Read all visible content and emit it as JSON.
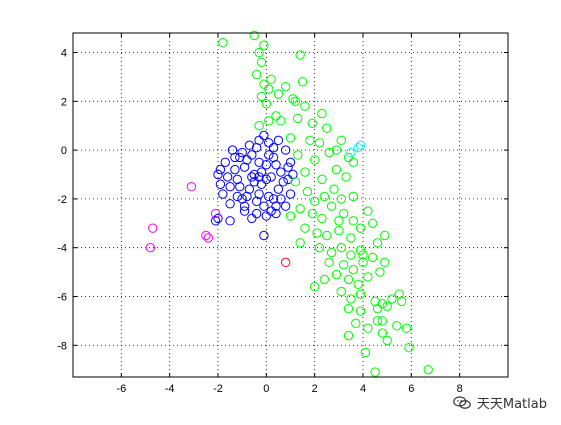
{
  "chart_data": {
    "type": "scatter",
    "title": "",
    "xlabel": "",
    "ylabel": "",
    "xlim": [
      -8,
      10
    ],
    "ylim": [
      -9.3,
      4.8
    ],
    "xticks": [
      -6,
      -4,
      -2,
      0,
      2,
      4,
      6,
      8
    ],
    "yticks": [
      -8,
      -6,
      -4,
      -2,
      0,
      2,
      4
    ],
    "xtick_labels": [
      "-6",
      "-4",
      "-2",
      "0",
      "2",
      "4",
      "6",
      "8"
    ],
    "ytick_labels": [
      "-8",
      "-6",
      "-4",
      "-2",
      "0",
      "2",
      "4"
    ],
    "grid": true,
    "grid_style": "dotted",
    "marker": "open-circle",
    "legend": "none",
    "series": [
      {
        "color": "#0000ff",
        "points": [
          [
            -2.1,
            -2.9
          ],
          [
            -2.0,
            -2.8
          ],
          [
            -1.5,
            -2.9
          ],
          [
            -0.6,
            -2.8
          ],
          [
            -0.1,
            -3.5
          ],
          [
            -1.9,
            -1.4
          ],
          [
            -2.0,
            -1.0
          ],
          [
            -1.9,
            -0.8
          ],
          [
            -1.3,
            -0.3
          ],
          [
            -1.0,
            -0.1
          ],
          [
            -0.7,
            0.2
          ],
          [
            -0.3,
            0.4
          ],
          [
            -0.1,
            0.6
          ],
          [
            0.1,
            0.3
          ],
          [
            0.5,
            0.4
          ],
          [
            0.8,
            0.0
          ],
          [
            1.0,
            -0.5
          ],
          [
            0.9,
            -1.2
          ],
          [
            1.0,
            -1.8
          ],
          [
            0.8,
            -2.3
          ],
          [
            0.4,
            -2.6
          ],
          [
            0.0,
            -2.7
          ],
          [
            -0.4,
            -2.6
          ],
          [
            -0.9,
            -2.5
          ],
          [
            -1.5,
            -2.2
          ],
          [
            -1.8,
            -1.8
          ],
          [
            -1.7,
            -0.5
          ],
          [
            -1.4,
            0.0
          ],
          [
            0.4,
            -2.3
          ],
          [
            1.1,
            -1.0
          ],
          [
            -1.2,
            -1.2
          ],
          [
            -0.9,
            -0.7
          ],
          [
            -0.5,
            -1.0
          ],
          [
            -0.2,
            -1.4
          ],
          [
            0.2,
            -1.1
          ],
          [
            0.4,
            -0.6
          ],
          [
            0.1,
            -0.2
          ],
          [
            -0.3,
            -0.5
          ],
          [
            -0.7,
            -1.6
          ],
          [
            -1.0,
            -2.0
          ],
          [
            -0.4,
            -2.1
          ],
          [
            0.1,
            -1.9
          ],
          [
            0.5,
            -1.6
          ],
          [
            0.6,
            -0.9
          ],
          [
            -0.2,
            -0.9
          ],
          [
            -0.6,
            -0.2
          ],
          [
            -1.3,
            -0.8
          ],
          [
            -1.5,
            -1.5
          ],
          [
            -0.8,
            -1.9
          ],
          [
            -0.1,
            -2.3
          ],
          [
            0.3,
            -2.0
          ],
          [
            0.7,
            -1.3
          ],
          [
            0.3,
            -0.3
          ],
          [
            -0.5,
            -1.3
          ],
          [
            -1.1,
            -1.5
          ],
          [
            -0.3,
            -1.8
          ],
          [
            0.0,
            -0.6
          ],
          [
            -0.8,
            -0.4
          ],
          [
            -1.1,
            -0.3
          ],
          [
            0.6,
            -2.0
          ],
          [
            -1.6,
            -1.1
          ],
          [
            -0.9,
            -2.3
          ],
          [
            0.2,
            -2.5
          ],
          [
            0.9,
            -0.7
          ],
          [
            0.3,
            0.1
          ],
          [
            -0.4,
            0.1
          ],
          [
            -1.2,
            -1.9
          ],
          [
            -0.6,
            -1.1
          ],
          [
            0.0,
            -1.2
          ],
          [
            -0.3,
            -1.1
          ]
        ]
      },
      {
        "color": "#00ff00",
        "points": [
          [
            -1.8,
            4.4
          ],
          [
            -0.5,
            4.7
          ],
          [
            -0.1,
            4.3
          ],
          [
            -0.3,
            4.0
          ],
          [
            -0.2,
            3.6
          ],
          [
            1.4,
            3.9
          ],
          [
            -0.4,
            3.1
          ],
          [
            -0.1,
            2.7
          ],
          [
            0.2,
            2.9
          ],
          [
            0.1,
            2.5
          ],
          [
            -0.2,
            2.2
          ],
          [
            0.0,
            1.9
          ],
          [
            0.5,
            2.3
          ],
          [
            0.8,
            2.6
          ],
          [
            1.5,
            2.8
          ],
          [
            1.1,
            2.1
          ],
          [
            1.6,
            1.8
          ],
          [
            0.4,
            1.4
          ],
          [
            0.1,
            1.2
          ],
          [
            -0.3,
            1.0
          ],
          [
            1.3,
            1.3
          ],
          [
            1.9,
            1.1
          ],
          [
            2.5,
            0.9
          ],
          [
            2.2,
            0.3
          ],
          [
            2.6,
            -0.1
          ],
          [
            3.1,
            0.4
          ],
          [
            3.4,
            -0.3
          ],
          [
            3.6,
            -0.5
          ],
          [
            2.0,
            -0.4
          ],
          [
            1.6,
            -0.9
          ],
          [
            1.2,
            -1.3
          ],
          [
            1.7,
            -1.7
          ],
          [
            2.3,
            -1.2
          ],
          [
            2.8,
            -1.6
          ],
          [
            3.1,
            -2.0
          ],
          [
            3.6,
            -1.9
          ],
          [
            1.4,
            -2.4
          ],
          [
            1.9,
            -2.6
          ],
          [
            2.3,
            -2.8
          ],
          [
            2.7,
            -2.3
          ],
          [
            3.2,
            -2.6
          ],
          [
            3.6,
            -2.9
          ],
          [
            4.2,
            -2.5
          ],
          [
            1.6,
            -3.2
          ],
          [
            2.1,
            -3.4
          ],
          [
            2.5,
            -3.5
          ],
          [
            3.0,
            -3.3
          ],
          [
            3.5,
            -3.6
          ],
          [
            3.9,
            -3.2
          ],
          [
            4.4,
            -3.0
          ],
          [
            2.2,
            -4.0
          ],
          [
            2.7,
            -4.2
          ],
          [
            3.1,
            -4.0
          ],
          [
            3.5,
            -4.3
          ],
          [
            3.9,
            -4.1
          ],
          [
            4.6,
            -3.8
          ],
          [
            4.9,
            -3.5
          ],
          [
            2.6,
            -4.6
          ],
          [
            3.2,
            -4.7
          ],
          [
            3.6,
            -4.9
          ],
          [
            4.0,
            -4.6
          ],
          [
            4.4,
            -4.4
          ],
          [
            4.9,
            -4.6
          ],
          [
            2.9,
            -5.1
          ],
          [
            3.4,
            -5.3
          ],
          [
            3.8,
            -5.5
          ],
          [
            4.2,
            -5.2
          ],
          [
            4.7,
            -5.0
          ],
          [
            2.0,
            -5.6
          ],
          [
            3.1,
            -5.8
          ],
          [
            3.5,
            -6.1
          ],
          [
            3.9,
            -5.9
          ],
          [
            4.5,
            -6.2
          ],
          [
            4.8,
            -6.3
          ],
          [
            5.2,
            -6.1
          ],
          [
            5.5,
            -5.9
          ],
          [
            3.4,
            -6.5
          ],
          [
            3.9,
            -6.6
          ],
          [
            4.6,
            -6.5
          ],
          [
            5.0,
            -6.4
          ],
          [
            5.6,
            -6.2
          ],
          [
            3.7,
            -7.1
          ],
          [
            4.2,
            -7.3
          ],
          [
            4.8,
            -7.0
          ],
          [
            5.4,
            -7.2
          ],
          [
            3.4,
            -7.6
          ],
          [
            4.8,
            -7.5
          ],
          [
            5.0,
            -7.8
          ],
          [
            5.8,
            -7.3
          ],
          [
            4.1,
            -8.3
          ],
          [
            5.9,
            -8.1
          ],
          [
            4.5,
            -9.1
          ],
          [
            6.7,
            -9.0
          ],
          [
            2.4,
            -1.9
          ],
          [
            2.9,
            -0.8
          ],
          [
            1.3,
            -0.2
          ],
          [
            1.8,
            0.4
          ],
          [
            2.9,
            0.0
          ],
          [
            3.3,
            -1.1
          ],
          [
            2.0,
            -2.1
          ],
          [
            1.0,
            -2.7
          ],
          [
            1.4,
            -3.8
          ],
          [
            3.0,
            -2.9
          ],
          [
            4.0,
            -4.3
          ],
          [
            2.4,
            -5.3
          ],
          [
            4.6,
            -7.0
          ],
          [
            1.0,
            0.5
          ],
          [
            0.6,
            1.2
          ],
          [
            2.3,
            1.5
          ],
          [
            1.2,
            2.0
          ]
        ]
      },
      {
        "color": "#00ffff",
        "points": [
          [
            3.5,
            -0.1
          ],
          [
            3.8,
            0.1
          ],
          [
            3.9,
            0.2
          ]
        ]
      },
      {
        "color": "#ff00ff",
        "points": [
          [
            -3.1,
            -1.5
          ],
          [
            -2.1,
            -2.6
          ],
          [
            -2.5,
            -3.5
          ],
          [
            -2.4,
            -3.6
          ],
          [
            -4.7,
            -3.2
          ],
          [
            -4.8,
            -4.0
          ]
        ]
      },
      {
        "color": "#ff0000",
        "points": [
          [
            0.8,
            -4.6
          ]
        ]
      }
    ]
  },
  "watermark": {
    "text": "天天Matlab",
    "icon": "wechat-icon"
  }
}
